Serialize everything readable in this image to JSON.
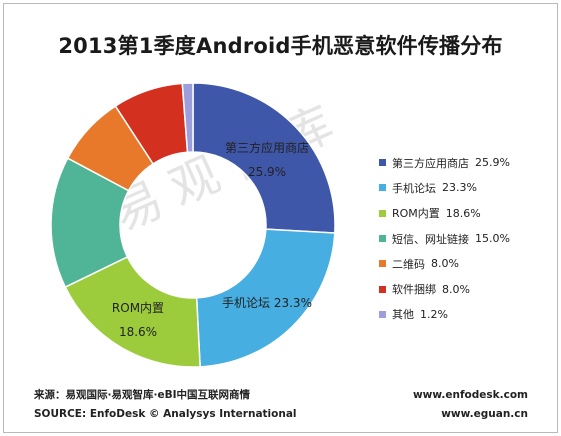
{
  "title": "2013第1季度Android手机恶意软件传播分布",
  "watermark": "易观智库",
  "chart_data": {
    "type": "pie",
    "donut": true,
    "title": "2013第1季度Android手机恶意软件传播分布",
    "unit": "%",
    "categories": [
      "第三方应用商店",
      "手机论坛",
      "ROM内置",
      "短信、网址链接",
      "二维码",
      "软件捆绑",
      "其他"
    ],
    "values": [
      25.9,
      23.3,
      18.6,
      15.0,
      8.0,
      8.0,
      1.2
    ],
    "value_labels": [
      "25.9%",
      "23.3%",
      "18.6%",
      "15.0%",
      "8.0%",
      "8.0%",
      "1.2%"
    ],
    "colors": [
      "#3f57a9",
      "#46aee0",
      "#9ccc3c",
      "#4fb596",
      "#e9792a",
      "#d4301f",
      "#9d9fdc"
    ],
    "legend_position": "right",
    "slice_labels": [
      {
        "name": "第三方应用商店",
        "value": "25.9%"
      },
      {
        "name": "手机论坛",
        "value": "23.3%"
      },
      {
        "name": "ROM内置",
        "value": "18.6%"
      }
    ]
  },
  "footer": {
    "source_cn": "来源：易观国际·易观智库·eBI中国互联网商情",
    "source_en": "SOURCE: EnfoDesk © Analysys International",
    "url1": "www.enfodesk.com",
    "url2": "www.eguan.cn"
  }
}
